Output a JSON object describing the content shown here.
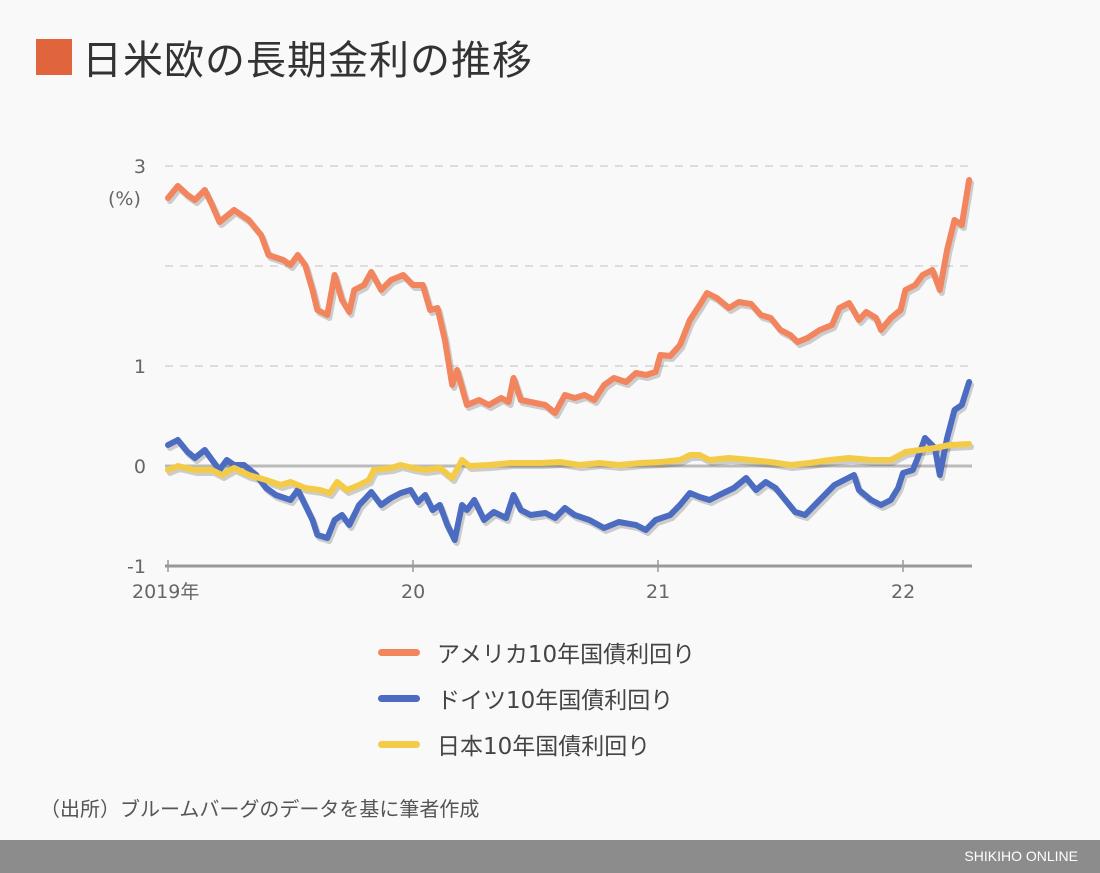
{
  "title": "日米欧の長期金利の推移",
  "colors": {
    "title_square": "#e0643c",
    "us": "#f2845e",
    "germany": "#4b6cc0",
    "japan": "#f4cb47"
  },
  "source": "（出所）ブルームバーグのデータを基に筆者作成",
  "footer": "SHIKIHO ONLINE",
  "chart_data": {
    "type": "line",
    "title": "",
    "ylabel": "(%)",
    "xlabel": "",
    "ylim": [
      -1,
      3
    ],
    "xlim": [
      2019.0,
      2022.27
    ],
    "yticks": [
      {
        "v": 3,
        "label": "3"
      },
      {
        "v": 2,
        "label": ""
      },
      {
        "v": 1,
        "label": "1"
      },
      {
        "v": 0,
        "label": "0"
      },
      {
        "v": -1,
        "label": "-1"
      }
    ],
    "xticks": [
      {
        "v": 2019,
        "label": "2019年"
      },
      {
        "v": 2020,
        "label": "20"
      },
      {
        "v": 2021,
        "label": "21"
      },
      {
        "v": 2022,
        "label": "22"
      }
    ],
    "grid": true,
    "legend": "bottom",
    "series": [
      {
        "name": "アメリカ10年国債利回り",
        "color": "#f2845e",
        "points": [
          [
            2019.0,
            2.68
          ],
          [
            2019.04,
            2.8
          ],
          [
            2019.08,
            2.71
          ],
          [
            2019.11,
            2.66
          ],
          [
            2019.15,
            2.76
          ],
          [
            2019.18,
            2.61
          ],
          [
            2019.21,
            2.44
          ],
          [
            2019.27,
            2.56
          ],
          [
            2019.33,
            2.46
          ],
          [
            2019.38,
            2.31
          ],
          [
            2019.41,
            2.11
          ],
          [
            2019.47,
            2.06
          ],
          [
            2019.5,
            2.01
          ],
          [
            2019.53,
            2.11
          ],
          [
            2019.56,
            2.01
          ],
          [
            2019.59,
            1.76
          ],
          [
            2019.61,
            1.56
          ],
          [
            2019.65,
            1.51
          ],
          [
            2019.68,
            1.91
          ],
          [
            2019.71,
            1.66
          ],
          [
            2019.74,
            1.54
          ],
          [
            2019.76,
            1.76
          ],
          [
            2019.8,
            1.81
          ],
          [
            2019.83,
            1.94
          ],
          [
            2019.87,
            1.76
          ],
          [
            2019.91,
            1.86
          ],
          [
            2019.96,
            1.91
          ],
          [
            2020.0,
            1.81
          ],
          [
            2020.04,
            1.81
          ],
          [
            2020.07,
            1.56
          ],
          [
            2020.1,
            1.58
          ],
          [
            2020.13,
            1.26
          ],
          [
            2020.16,
            0.81
          ],
          [
            2020.18,
            0.96
          ],
          [
            2020.22,
            0.61
          ],
          [
            2020.27,
            0.66
          ],
          [
            2020.31,
            0.61
          ],
          [
            2020.36,
            0.68
          ],
          [
            2020.39,
            0.64
          ],
          [
            2020.41,
            0.88
          ],
          [
            2020.44,
            0.66
          ],
          [
            2020.48,
            0.64
          ],
          [
            2020.54,
            0.61
          ],
          [
            2020.58,
            0.53
          ],
          [
            2020.62,
            0.71
          ],
          [
            2020.66,
            0.68
          ],
          [
            2020.7,
            0.71
          ],
          [
            2020.74,
            0.66
          ],
          [
            2020.78,
            0.81
          ],
          [
            2020.82,
            0.88
          ],
          [
            2020.87,
            0.84
          ],
          [
            2020.91,
            0.93
          ],
          [
            2020.95,
            0.91
          ],
          [
            2020.99,
            0.94
          ],
          [
            2021.01,
            1.11
          ],
          [
            2021.05,
            1.1
          ],
          [
            2021.09,
            1.21
          ],
          [
            2021.13,
            1.46
          ],
          [
            2021.17,
            1.61
          ],
          [
            2021.2,
            1.73
          ],
          [
            2021.24,
            1.68
          ],
          [
            2021.29,
            1.58
          ],
          [
            2021.33,
            1.64
          ],
          [
            2021.38,
            1.62
          ],
          [
            2021.42,
            1.51
          ],
          [
            2021.46,
            1.48
          ],
          [
            2021.5,
            1.36
          ],
          [
            2021.54,
            1.31
          ],
          [
            2021.57,
            1.24
          ],
          [
            2021.61,
            1.28
          ],
          [
            2021.66,
            1.36
          ],
          [
            2021.71,
            1.41
          ],
          [
            2021.74,
            1.58
          ],
          [
            2021.78,
            1.63
          ],
          [
            2021.82,
            1.46
          ],
          [
            2021.85,
            1.54
          ],
          [
            2021.89,
            1.48
          ],
          [
            2021.91,
            1.36
          ],
          [
            2021.95,
            1.48
          ],
          [
            2021.99,
            1.56
          ],
          [
            2022.01,
            1.76
          ],
          [
            2022.05,
            1.81
          ],
          [
            2022.08,
            1.91
          ],
          [
            2022.12,
            1.96
          ],
          [
            2022.15,
            1.76
          ],
          [
            2022.18,
            2.16
          ],
          [
            2022.21,
            2.46
          ],
          [
            2022.24,
            2.41
          ],
          [
            2022.27,
            2.86
          ]
        ]
      },
      {
        "name": "ドイツ10年国債利回り",
        "color": "#4b6cc0",
        "points": [
          [
            2019.0,
            0.21
          ],
          [
            2019.04,
            0.26
          ],
          [
            2019.08,
            0.14
          ],
          [
            2019.11,
            0.08
          ],
          [
            2019.15,
            0.16
          ],
          [
            2019.18,
            0.06
          ],
          [
            2019.21,
            -0.04
          ],
          [
            2019.24,
            0.06
          ],
          [
            2019.27,
            0.01
          ],
          [
            2019.31,
            0.01
          ],
          [
            2019.36,
            -0.09
          ],
          [
            2019.4,
            -0.22
          ],
          [
            2019.44,
            -0.29
          ],
          [
            2019.5,
            -0.34
          ],
          [
            2019.53,
            -0.24
          ],
          [
            2019.56,
            -0.39
          ],
          [
            2019.59,
            -0.54
          ],
          [
            2019.61,
            -0.69
          ],
          [
            2019.65,
            -0.72
          ],
          [
            2019.68,
            -0.54
          ],
          [
            2019.71,
            -0.49
          ],
          [
            2019.74,
            -0.59
          ],
          [
            2019.78,
            -0.39
          ],
          [
            2019.8,
            -0.34
          ],
          [
            2019.83,
            -0.26
          ],
          [
            2019.87,
            -0.39
          ],
          [
            2019.91,
            -0.32
          ],
          [
            2019.95,
            -0.27
          ],
          [
            2019.99,
            -0.24
          ],
          [
            2020.02,
            -0.36
          ],
          [
            2020.05,
            -0.29
          ],
          [
            2020.08,
            -0.44
          ],
          [
            2020.11,
            -0.39
          ],
          [
            2020.14,
            -0.59
          ],
          [
            2020.17,
            -0.74
          ],
          [
            2020.2,
            -0.39
          ],
          [
            2020.22,
            -0.44
          ],
          [
            2020.25,
            -0.34
          ],
          [
            2020.29,
            -0.54
          ],
          [
            2020.33,
            -0.46
          ],
          [
            2020.38,
            -0.52
          ],
          [
            2020.41,
            -0.29
          ],
          [
            2020.44,
            -0.44
          ],
          [
            2020.48,
            -0.49
          ],
          [
            2020.54,
            -0.47
          ],
          [
            2020.58,
            -0.52
          ],
          [
            2020.62,
            -0.42
          ],
          [
            2020.66,
            -0.49
          ],
          [
            2020.72,
            -0.54
          ],
          [
            2020.78,
            -0.62
          ],
          [
            2020.84,
            -0.56
          ],
          [
            2020.91,
            -0.59
          ],
          [
            2020.95,
            -0.64
          ],
          [
            2020.99,
            -0.54
          ],
          [
            2021.05,
            -0.49
          ],
          [
            2021.09,
            -0.39
          ],
          [
            2021.13,
            -0.27
          ],
          [
            2021.17,
            -0.31
          ],
          [
            2021.21,
            -0.34
          ],
          [
            2021.25,
            -0.29
          ],
          [
            2021.31,
            -0.22
          ],
          [
            2021.36,
            -0.12
          ],
          [
            2021.4,
            -0.24
          ],
          [
            2021.44,
            -0.16
          ],
          [
            2021.48,
            -0.22
          ],
          [
            2021.52,
            -0.34
          ],
          [
            2021.56,
            -0.46
          ],
          [
            2021.6,
            -0.49
          ],
          [
            2021.64,
            -0.39
          ],
          [
            2021.68,
            -0.29
          ],
          [
            2021.72,
            -0.19
          ],
          [
            2021.76,
            -0.14
          ],
          [
            2021.8,
            -0.09
          ],
          [
            2021.82,
            -0.24
          ],
          [
            2021.87,
            -0.34
          ],
          [
            2021.91,
            -0.39
          ],
          [
            2021.95,
            -0.34
          ],
          [
            2021.98,
            -0.22
          ],
          [
            2022.0,
            -0.07
          ],
          [
            2022.04,
            -0.04
          ],
          [
            2022.06,
            0.08
          ],
          [
            2022.09,
            0.28
          ],
          [
            2022.13,
            0.18
          ],
          [
            2022.15,
            -0.09
          ],
          [
            2022.18,
            0.28
          ],
          [
            2022.21,
            0.56
          ],
          [
            2022.24,
            0.61
          ],
          [
            2022.27,
            0.84
          ]
        ]
      },
      {
        "name": "日本10年国債利回り",
        "color": "#f4cb47",
        "points": [
          [
            2019.0,
            -0.04
          ],
          [
            2019.04,
            0.0
          ],
          [
            2019.11,
            -0.04
          ],
          [
            2019.18,
            -0.04
          ],
          [
            2019.22,
            -0.09
          ],
          [
            2019.27,
            -0.02
          ],
          [
            2019.33,
            -0.09
          ],
          [
            2019.4,
            -0.14
          ],
          [
            2019.46,
            -0.19
          ],
          [
            2019.5,
            -0.16
          ],
          [
            2019.56,
            -0.22
          ],
          [
            2019.62,
            -0.24
          ],
          [
            2019.66,
            -0.27
          ],
          [
            2019.69,
            -0.16
          ],
          [
            2019.73,
            -0.24
          ],
          [
            2019.78,
            -0.19
          ],
          [
            2019.82,
            -0.14
          ],
          [
            2019.84,
            -0.04
          ],
          [
            2019.91,
            -0.02
          ],
          [
            2019.95,
            0.01
          ],
          [
            2020.0,
            -0.02
          ],
          [
            2020.05,
            -0.04
          ],
          [
            2020.11,
            -0.02
          ],
          [
            2020.16,
            -0.12
          ],
          [
            2020.2,
            0.06
          ],
          [
            2020.23,
            0.0
          ],
          [
            2020.31,
            0.01
          ],
          [
            2020.4,
            0.03
          ],
          [
            2020.52,
            0.03
          ],
          [
            2020.6,
            0.04
          ],
          [
            2020.68,
            0.01
          ],
          [
            2020.76,
            0.03
          ],
          [
            2020.84,
            0.01
          ],
          [
            2020.93,
            0.03
          ],
          [
            2021.01,
            0.04
          ],
          [
            2021.09,
            0.06
          ],
          [
            2021.13,
            0.11
          ],
          [
            2021.17,
            0.11
          ],
          [
            2021.21,
            0.06
          ],
          [
            2021.29,
            0.08
          ],
          [
            2021.38,
            0.06
          ],
          [
            2021.46,
            0.04
          ],
          [
            2021.54,
            0.01
          ],
          [
            2021.62,
            0.03
          ],
          [
            2021.7,
            0.06
          ],
          [
            2021.78,
            0.08
          ],
          [
            2021.87,
            0.06
          ],
          [
            2021.95,
            0.06
          ],
          [
            2022.01,
            0.14
          ],
          [
            2022.07,
            0.16
          ],
          [
            2022.13,
            0.18
          ],
          [
            2022.19,
            0.21
          ],
          [
            2022.27,
            0.22
          ]
        ]
      }
    ]
  }
}
